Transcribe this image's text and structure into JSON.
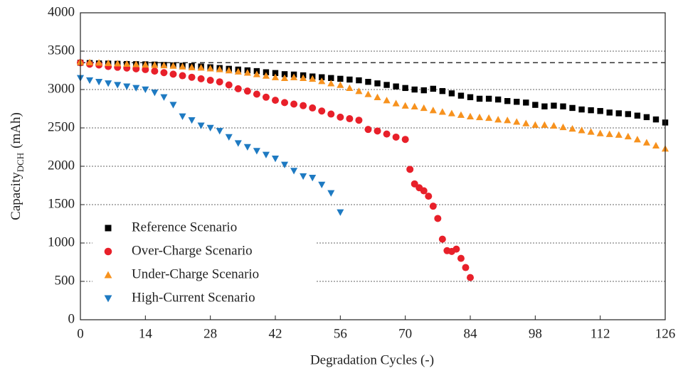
{
  "chart_data": {
    "type": "scatter",
    "x_label": "Degradation Cycles (-)",
    "y_label": "Capacity",
    "y_label_subscript": "DCH",
    "y_label_unit": "(mAh)",
    "xlim": [
      0,
      126
    ],
    "xticks": [
      0,
      14,
      28,
      42,
      56,
      70,
      84,
      98,
      112,
      126
    ],
    "ylim": [
      0,
      4000
    ],
    "yticks": [
      0,
      500,
      1000,
      1500,
      2000,
      2500,
      3000,
      3500,
      4000
    ],
    "grid": true,
    "legend": "lower left",
    "reference_line": 3350,
    "series": [
      {
        "name": "Reference Scenario",
        "color": "#000000",
        "marker": "square",
        "x": [
          0,
          2,
          4,
          6,
          8,
          10,
          12,
          14,
          16,
          18,
          20,
          22,
          24,
          26,
          28,
          30,
          32,
          34,
          36,
          38,
          40,
          42,
          44,
          46,
          48,
          50,
          52,
          54,
          56,
          58,
          60,
          62,
          64,
          66,
          68,
          70,
          72,
          74,
          76,
          78,
          80,
          82,
          84,
          86,
          88,
          90,
          92,
          94,
          96,
          98,
          100,
          102,
          104,
          106,
          108,
          110,
          112,
          114,
          116,
          118,
          120,
          122,
          124,
          126
        ],
        "values": [
          3350,
          3345,
          3340,
          3338,
          3335,
          3332,
          3330,
          3328,
          3325,
          3320,
          3315,
          3310,
          3305,
          3300,
          3290,
          3280,
          3270,
          3260,
          3250,
          3240,
          3225,
          3215,
          3200,
          3195,
          3185,
          3170,
          3160,
          3150,
          3140,
          3130,
          3120,
          3100,
          3080,
          3060,
          3040,
          3020,
          3000,
          2990,
          3010,
          2980,
          2950,
          2920,
          2900,
          2880,
          2880,
          2870,
          2850,
          2840,
          2830,
          2800,
          2780,
          2790,
          2780,
          2760,
          2740,
          2730,
          2720,
          2700,
          2690,
          2680,
          2660,
          2640,
          2610,
          2570
        ]
      },
      {
        "name": "Over-Charge Scenario",
        "color": "#e8202a",
        "marker": "circle",
        "x": [
          0,
          2,
          4,
          6,
          8,
          10,
          12,
          14,
          16,
          18,
          20,
          22,
          24,
          26,
          28,
          30,
          32,
          34,
          36,
          38,
          40,
          42,
          44,
          46,
          48,
          50,
          52,
          54,
          56,
          58,
          60,
          62,
          64,
          66,
          68,
          70,
          71,
          72,
          73,
          74,
          75,
          76,
          77,
          78,
          79,
          80,
          81,
          82,
          83,
          84
        ],
        "values": [
          3350,
          3330,
          3320,
          3300,
          3290,
          3280,
          3270,
          3260,
          3240,
          3220,
          3200,
          3180,
          3160,
          3140,
          3120,
          3100,
          3060,
          3010,
          2980,
          2940,
          2900,
          2860,
          2830,
          2810,
          2790,
          2760,
          2720,
          2680,
          2640,
          2620,
          2600,
          2480,
          2460,
          2420,
          2380,
          2350,
          1960,
          1770,
          1720,
          1680,
          1610,
          1480,
          1320,
          1050,
          900,
          890,
          920,
          800,
          680,
          550
        ]
      },
      {
        "name": "Under-Charge Scenario",
        "color": "#f7921e",
        "marker": "triangle-up",
        "x": [
          0,
          2,
          4,
          6,
          8,
          10,
          12,
          14,
          16,
          18,
          20,
          22,
          24,
          26,
          28,
          30,
          32,
          34,
          36,
          38,
          40,
          42,
          44,
          46,
          48,
          50,
          52,
          54,
          56,
          58,
          60,
          62,
          64,
          66,
          68,
          70,
          72,
          74,
          76,
          78,
          80,
          82,
          84,
          86,
          88,
          90,
          92,
          94,
          96,
          98,
          100,
          102,
          104,
          106,
          108,
          110,
          112,
          114,
          116,
          118,
          120,
          122,
          124,
          126
        ],
        "values": [
          3360,
          3355,
          3350,
          3345,
          3340,
          3335,
          3330,
          3325,
          3320,
          3315,
          3310,
          3300,
          3290,
          3285,
          3275,
          3265,
          3250,
          3235,
          3220,
          3200,
          3180,
          3160,
          3150,
          3160,
          3150,
          3140,
          3110,
          3080,
          3060,
          3020,
          2980,
          2940,
          2900,
          2860,
          2820,
          2790,
          2780,
          2760,
          2730,
          2710,
          2690,
          2670,
          2650,
          2640,
          2630,
          2610,
          2600,
          2580,
          2560,
          2540,
          2540,
          2530,
          2510,
          2490,
          2470,
          2450,
          2430,
          2420,
          2410,
          2390,
          2350,
          2310,
          2270,
          2230
        ]
      },
      {
        "name": "High-Current Scenario",
        "color": "#1e7ac2",
        "marker": "triangle-down",
        "x": [
          0,
          2,
          4,
          6,
          8,
          10,
          12,
          14,
          16,
          18,
          20,
          22,
          24,
          26,
          28,
          30,
          32,
          34,
          36,
          38,
          40,
          42,
          44,
          46,
          48,
          50,
          52,
          54,
          56
        ],
        "values": [
          3150,
          3120,
          3100,
          3080,
          3060,
          3040,
          3020,
          3000,
          2960,
          2900,
          2800,
          2650,
          2600,
          2530,
          2500,
          2460,
          2380,
          2300,
          2250,
          2200,
          2150,
          2100,
          2020,
          1940,
          1870,
          1850,
          1760,
          1650,
          1400
        ]
      }
    ]
  }
}
